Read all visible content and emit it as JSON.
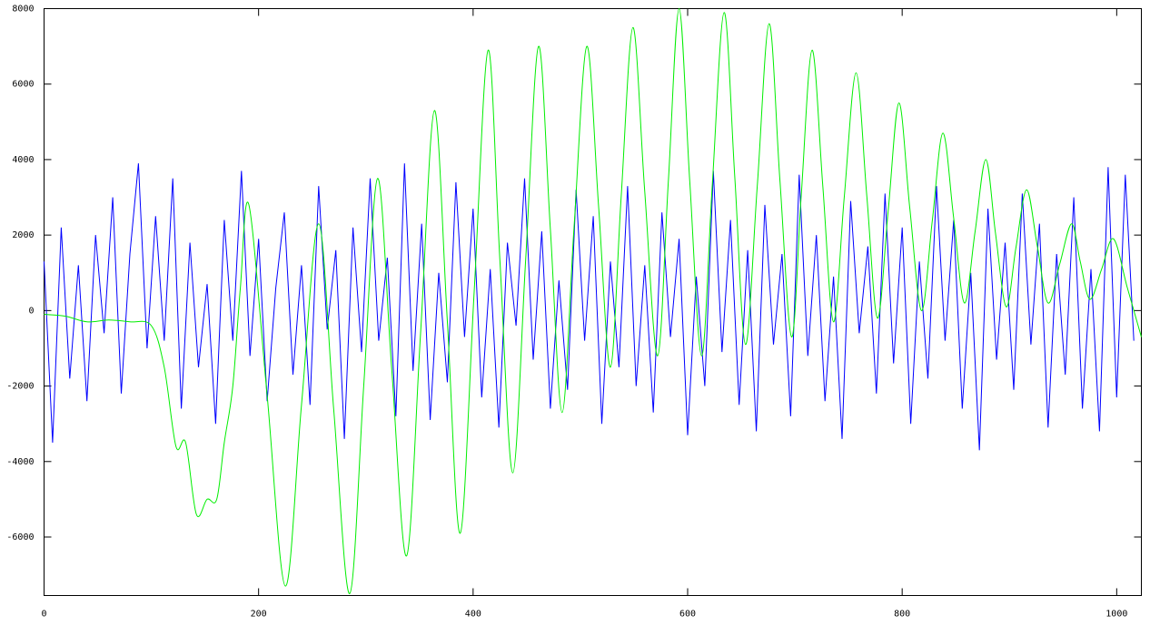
{
  "chart_data": {
    "type": "line",
    "xlim": [
      0,
      1023
    ],
    "ylim": [
      -7550,
      8000
    ],
    "xticks": [
      0,
      200,
      400,
      600,
      800,
      1000
    ],
    "yticks": [
      -6000,
      -4000,
      -2000,
      0,
      2000,
      4000,
      6000,
      8000
    ],
    "series": [
      {
        "color": "#0000ff",
        "x": [
          0,
          8,
          16,
          24,
          32,
          40,
          48,
          56,
          64,
          72,
          80,
          88,
          96,
          104,
          112,
          120,
          128,
          136,
          144,
          152,
          160,
          168,
          176,
          184,
          192,
          200,
          208,
          216,
          224,
          232,
          240,
          248,
          256,
          264,
          272,
          280,
          288,
          296,
          304,
          312,
          320,
          328,
          336,
          344,
          352,
          360,
          368,
          376,
          384,
          392,
          400,
          408,
          416,
          424,
          432,
          440,
          448,
          456,
          464,
          472,
          480,
          488,
          496,
          504,
          512,
          520,
          528,
          536,
          544,
          552,
          560,
          568,
          576,
          584,
          592,
          600,
          608,
          616,
          624,
          632,
          640,
          648,
          656,
          664,
          672,
          680,
          688,
          696,
          704,
          712,
          720,
          728,
          736,
          744,
          752,
          760,
          768,
          776,
          784,
          792,
          800,
          808,
          816,
          824,
          832,
          840,
          848,
          856,
          864,
          872,
          880,
          888,
          896,
          904,
          912,
          920,
          928,
          936,
          944,
          952,
          960,
          968,
          976,
          984,
          992,
          1000,
          1008,
          1016
        ],
        "values": [
          1300,
          -3500,
          2200,
          -1800,
          1200,
          -2400,
          2000,
          -600,
          3000,
          -2200,
          1500,
          3900,
          -1000,
          2500,
          -800,
          3500,
          -2600,
          1800,
          -1500,
          700,
          -3000,
          2400,
          -800,
          3700,
          -1200,
          1900,
          -2400,
          600,
          2600,
          -1700,
          1200,
          -2500,
          3300,
          -500,
          1600,
          -3400,
          2200,
          -1100,
          3500,
          -800,
          1400,
          -2800,
          3900,
          -1600,
          2300,
          -2900,
          1000,
          -1900,
          3400,
          -700,
          2700,
          -2300,
          1100,
          -3100,
          1800,
          -400,
          3500,
          -1300,
          2100,
          -2600,
          800,
          -2100,
          3200,
          -800,
          2500,
          -3000,
          1300,
          -1500,
          3300,
          -2000,
          1200,
          -2700,
          2600,
          -700,
          1900,
          -3300,
          900,
          -2000,
          3700,
          -1100,
          2400,
          -2500,
          1600,
          -3200,
          2800,
          -900,
          1500,
          -2800,
          3600,
          -1200,
          2000,
          -2400,
          900,
          -3400,
          2900,
          -600,
          1700,
          -2200,
          3100,
          -1400,
          2200,
          -3000,
          1300,
          -1800,
          3300,
          -800,
          2400,
          -2600,
          1000,
          -3700,
          2700,
          -1300,
          1800,
          -2100,
          3100,
          -900,
          2300,
          -3100,
          1500,
          -1700,
          3000,
          -2600,
          1100,
          -3200,
          3800,
          -2300,
          3600,
          -800
        ]
      },
      {
        "color": "#00ee00",
        "x": [
          0,
          20,
          40,
          60,
          80,
          100,
          112,
          123,
          132,
          142,
          152,
          161,
          168,
          176,
          183,
          191,
          208,
          225,
          240,
          256,
          270,
          285,
          298,
          311,
          324,
          338,
          351,
          364,
          376,
          388,
          401,
          414,
          425,
          437,
          449,
          461,
          472,
          483,
          494,
          506,
          517,
          528,
          538,
          549,
          560,
          572,
          582,
          592,
          602,
          613,
          623,
          634,
          644,
          654,
          665,
          676,
          686,
          697,
          706,
          716,
          726,
          736,
          746,
          757,
          767,
          777,
          787,
          797,
          807,
          818,
          828,
          838,
          848,
          858,
          868,
          878,
          887,
          897,
          906,
          916,
          926,
          936,
          947,
          958,
          966,
          975,
          986,
          997,
          1010,
          1023
        ],
        "values": [
          -100,
          -150,
          -300,
          -250,
          -300,
          -400,
          -1500,
          -3600,
          -3500,
          -5400,
          -5000,
          -5000,
          -3500,
          -2000,
          600,
          2800,
          -2250,
          -7300,
          -2500,
          2300,
          -2600,
          -7500,
          -2000,
          3500,
          -1500,
          -6500,
          -600,
          5300,
          -300,
          -5900,
          500,
          6900,
          1300,
          -4300,
          1350,
          7000,
          2150,
          -2700,
          2150,
          7000,
          2750,
          -1500,
          3000,
          7500,
          3150,
          -1200,
          3400,
          8000,
          3400,
          -1200,
          3350,
          7900,
          3500,
          -900,
          3350,
          7600,
          3450,
          -700,
          3100,
          6900,
          3300,
          -300,
          3000,
          6300,
          3050,
          -200,
          2650,
          5500,
          2750,
          0,
          2350,
          4700,
          2450,
          200,
          2100,
          4000,
          2050,
          100,
          1650,
          3200,
          1700,
          200,
          1250,
          2300,
          1300,
          300,
          1100,
          1900,
          600,
          -700
        ]
      }
    ]
  }
}
